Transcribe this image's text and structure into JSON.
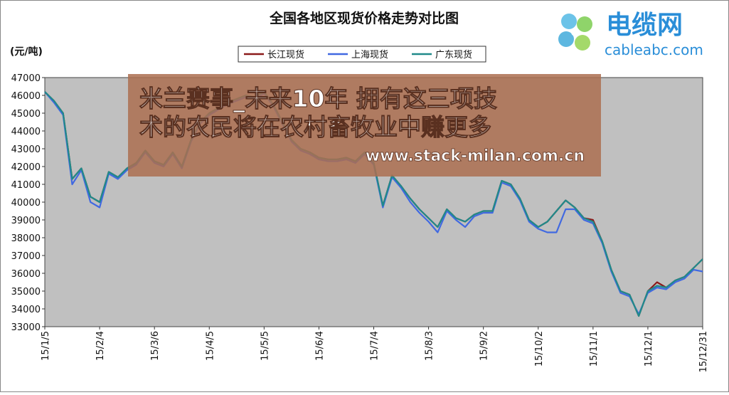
{
  "chart_data": {
    "type": "line",
    "title": "全国各地区现货价格走势对比图",
    "y_label": "(元/吨)",
    "categories": [
      "15/1/5",
      null,
      null,
      null,
      null,
      null,
      "15/2/4",
      null,
      null,
      null,
      null,
      null,
      "15/3/6",
      null,
      null,
      null,
      null,
      null,
      "15/4/5",
      null,
      null,
      null,
      null,
      null,
      "15/5/5",
      null,
      null,
      null,
      null,
      null,
      "15/6/4",
      null,
      null,
      null,
      null,
      null,
      "15/7/4",
      null,
      null,
      null,
      null,
      null,
      "15/8/3",
      null,
      null,
      null,
      null,
      null,
      "15/9/2",
      null,
      null,
      null,
      null,
      null,
      "15/10/2",
      null,
      null,
      null,
      null,
      null,
      "15/11/1",
      null,
      null,
      null,
      null,
      null,
      "15/12/1",
      null,
      null,
      null,
      null,
      null,
      "15/12/31"
    ],
    "series": [
      {
        "name": "长江现货",
        "color": "#8b1a1a",
        "values": [
          46200,
          45700,
          45000,
          41300,
          41900,
          40300,
          40000,
          41700,
          41400,
          41900,
          42200,
          42900,
          42300,
          42100,
          42800,
          42000,
          43500,
          44500,
          45000,
          45300,
          45600,
          45800,
          46000,
          45900,
          46200,
          45500,
          44500,
          43500,
          43000,
          42800,
          42500,
          42400,
          42400,
          42500,
          42300,
          42800,
          42200,
          39800,
          41500,
          40900,
          40200,
          39600,
          39100,
          38600,
          39600,
          39100,
          38900,
          39300,
          39500,
          39500,
          41200,
          41000,
          40200,
          39000,
          38600,
          38900,
          39500,
          40100,
          39700,
          39100,
          39000,
          37800,
          36200,
          35000,
          34800,
          33600,
          35000,
          35500,
          35200,
          35600,
          35800,
          36300,
          36800
        ]
      },
      {
        "name": "上海现货",
        "color": "#4169e1",
        "values": [
          46200,
          45600,
          44900,
          41000,
          41800,
          40000,
          39700,
          41600,
          41300,
          41800,
          42100,
          42800,
          42200,
          42000,
          42700,
          41900,
          43400,
          44400,
          44900,
          45200,
          45500,
          45700,
          45900,
          45800,
          46100,
          45400,
          44400,
          43400,
          42900,
          42700,
          42400,
          42300,
          42300,
          42400,
          42200,
          42700,
          42100,
          39700,
          41400,
          40800,
          40000,
          39400,
          38900,
          38300,
          39500,
          39000,
          38600,
          39200,
          39400,
          39400,
          41100,
          40900,
          40100,
          38900,
          38500,
          38300,
          38300,
          39600,
          39600,
          39000,
          38800,
          37700,
          36100,
          34900,
          34700,
          33700,
          34900,
          35200,
          35100,
          35500,
          35700,
          36200,
          36100
        ]
      },
      {
        "name": "广东现货",
        "color": "#208a8a",
        "values": [
          46200,
          45700,
          45000,
          41300,
          41900,
          40300,
          40000,
          41700,
          41400,
          41900,
          42200,
          42900,
          42300,
          42100,
          42800,
          42000,
          43500,
          44500,
          45000,
          45300,
          45600,
          45800,
          46000,
          45900,
          46200,
          45500,
          44500,
          43500,
          43000,
          42800,
          42500,
          42400,
          42400,
          42500,
          42300,
          42800,
          42200,
          39800,
          41500,
          40900,
          40200,
          39600,
          39100,
          38600,
          39600,
          39100,
          38900,
          39300,
          39500,
          39500,
          41200,
          41000,
          40200,
          39000,
          38600,
          38900,
          39500,
          40100,
          39700,
          39100,
          38900,
          37800,
          36200,
          35000,
          34800,
          33600,
          35000,
          35300,
          35200,
          35600,
          35800,
          36300,
          36800
        ]
      }
    ],
    "ylim": [
      33000,
      47000
    ],
    "yticks": [
      33000,
      34000,
      35000,
      36000,
      37000,
      38000,
      39000,
      40000,
      41000,
      42000,
      43000,
      44000,
      45000,
      46000,
      47000
    ],
    "grid": false,
    "legend": "top"
  },
  "overlay": {
    "headline": [
      "米兰赛事_未来10年 拥有这三项技",
      "术的农民将在农村畜牧业中赚更多"
    ],
    "url": "www.stack-milan.com.cn"
  },
  "logo": {
    "name": "电缆网",
    "domain": "cableabc.com"
  }
}
